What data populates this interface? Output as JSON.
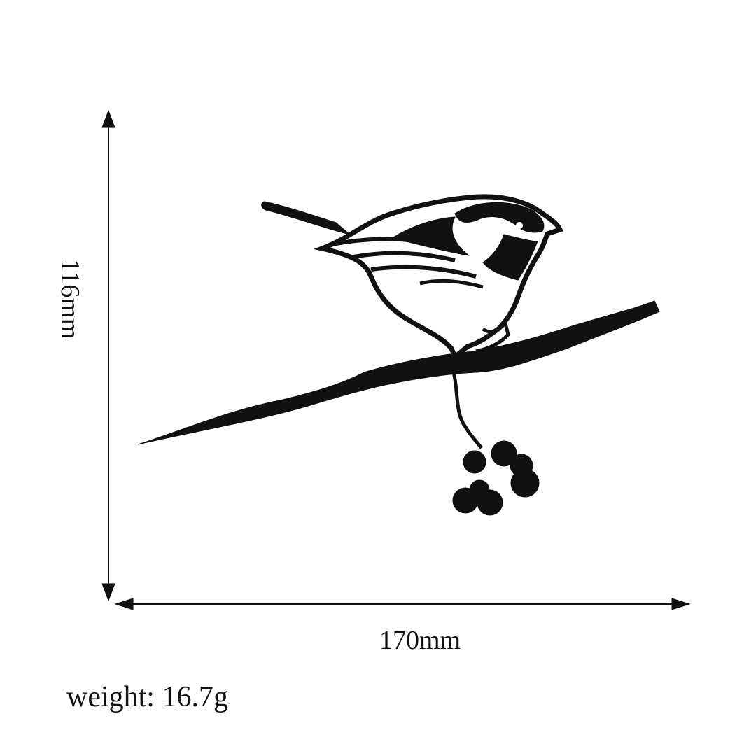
{
  "dimensions": {
    "height": "116mm",
    "width": "170mm"
  },
  "weight": "weight: 16.7g",
  "colors": {
    "silhouette": "#111111",
    "background": "#ffffff"
  }
}
